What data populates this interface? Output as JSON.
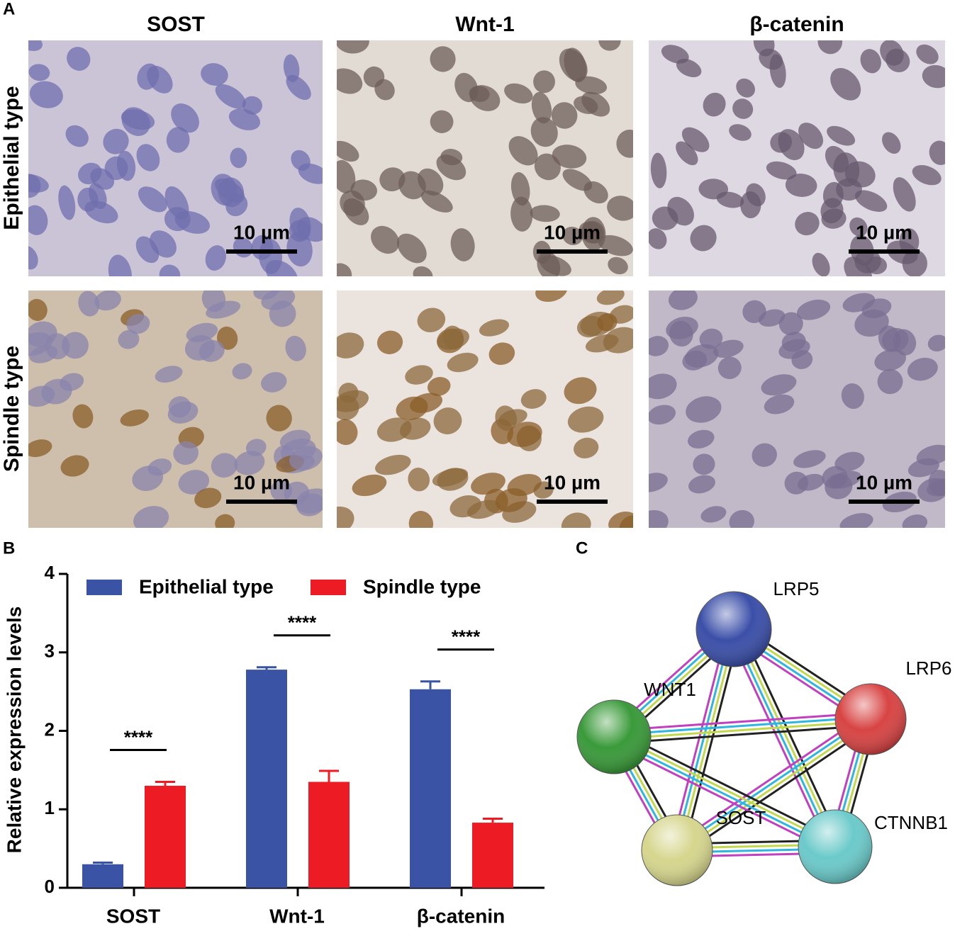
{
  "panel_a": {
    "label": "A",
    "columns": [
      "SOST",
      "Wnt-1",
      "β-catenin"
    ],
    "rows": [
      "Epithelial type",
      "Spindle type"
    ],
    "scale_bars": [
      "10 µm",
      "10 µm",
      "10 µm",
      "10 µm",
      "10 µm",
      "10 µm"
    ]
  },
  "chart_data": {
    "type": "bar",
    "label": "B",
    "categories": [
      "SOST",
      "Wnt-1",
      "β-catenin"
    ],
    "series": [
      {
        "name": "Epithelial type",
        "color": "#3a53a4",
        "values": [
          0.3,
          2.78,
          2.53
        ],
        "errors": [
          0.02,
          0.03,
          0.1
        ]
      },
      {
        "name": "Spindle type",
        "color": "#ed1c24",
        "values": [
          1.3,
          1.35,
          0.83
        ],
        "errors": [
          0.05,
          0.14,
          0.05
        ]
      }
    ],
    "significance": [
      "****",
      "****",
      "****"
    ],
    "ylabel": "Relative expression levels",
    "ylim": [
      0,
      4
    ],
    "yticks": [
      0,
      1,
      2,
      3,
      4
    ],
    "legend": "top"
  },
  "panel_c": {
    "label": "C",
    "nodes": [
      {
        "label": "LRP5"
      },
      {
        "label": "LRP6"
      },
      {
        "label": "WNT1"
      },
      {
        "label": "SOST"
      },
      {
        "label": "CTNNB1"
      }
    ]
  }
}
